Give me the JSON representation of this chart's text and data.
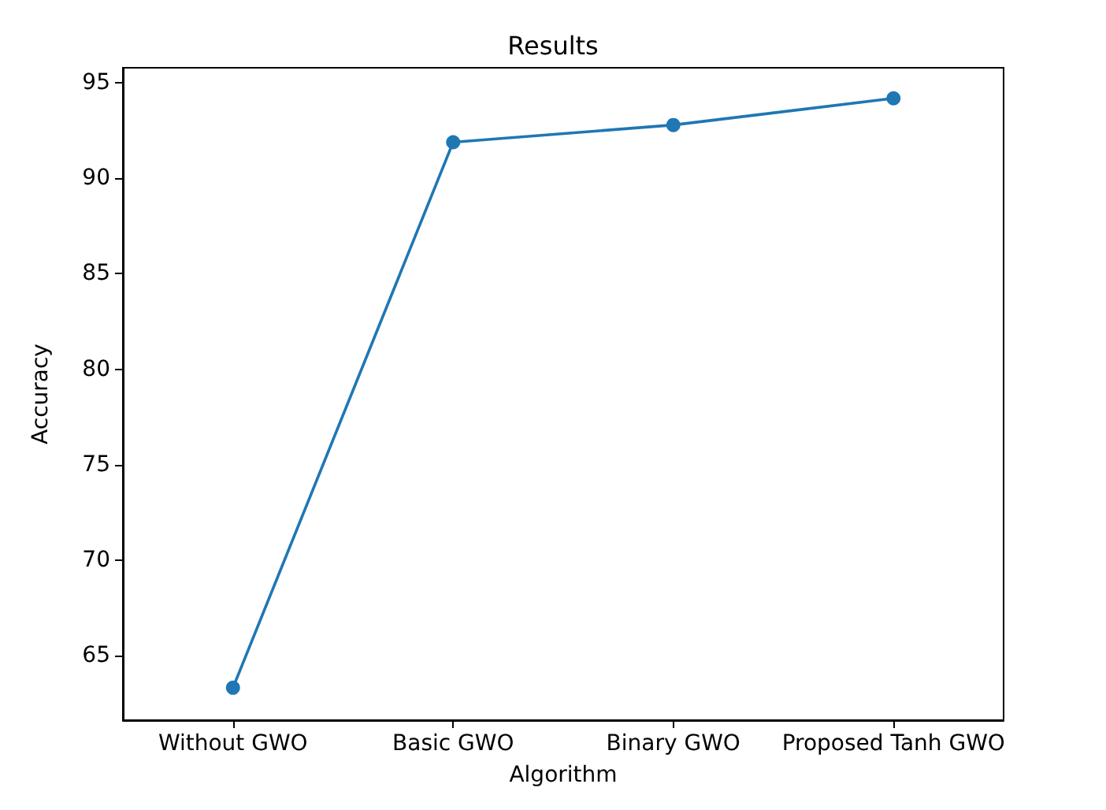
{
  "chart_data": {
    "type": "line",
    "title": "Results",
    "xlabel": "Algorithm",
    "ylabel": "Accuracy",
    "categories": [
      "Without GWO",
      "Basic GWO",
      "Binary GWO",
      "Proposed Tanh GWO"
    ],
    "series": [
      {
        "color": "#1f77b4",
        "values": [
          63.3,
          91.9,
          92.8,
          94.2
        ]
      }
    ],
    "ylim": [
      61.6,
      95.8
    ],
    "yticks": [
      65,
      70,
      75,
      80,
      85,
      90,
      95
    ],
    "grid": false,
    "marker": "circle",
    "line_style": "solid"
  }
}
